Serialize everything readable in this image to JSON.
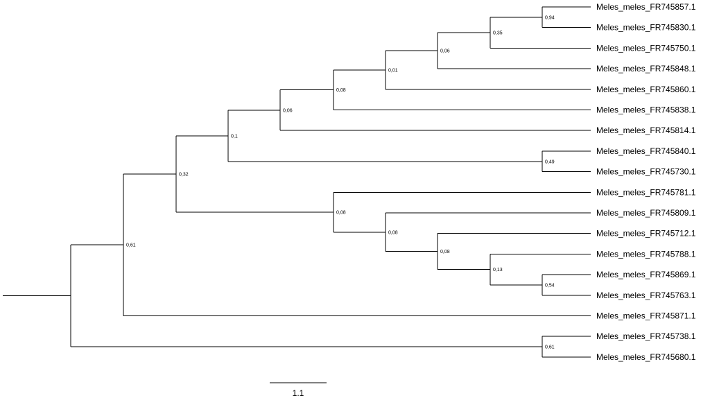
{
  "tree": {
    "leaves": [
      "Meles_meles_FR745857.1",
      "Meles_meles_FR745830.1",
      "Meles_meles_FR745750.1",
      "Meles_meles_FR745848.1",
      "Meles_meles_FR745860.1",
      "Meles_meles_FR745838.1",
      "Meles_meles_FR745814.1",
      "Meles_meles_FR745840.1",
      "Meles_meles_FR745730.1",
      "Meles_meles_FR745781.1",
      "Meles_meles_FR745809.1",
      "Meles_meles_FR745712.1",
      "Meles_meles_FR745788.1",
      "Meles_meles_FR745869.1",
      "Meles_meles_FR745763.1",
      "Meles_meles_FR745871.1",
      "Meles_meles_FR745738.1",
      "Meles_meles_FR745680.1"
    ],
    "support_values": [
      "0,94",
      "0,35",
      "0,06",
      "0,01",
      "0,08",
      "0,06",
      "0,1",
      "0,49",
      "0,32",
      "0,08",
      "0,08",
      "0,08",
      "0,13",
      "0,54",
      "0,61",
      "0,61"
    ],
    "scale_bar_label": "1.1"
  }
}
